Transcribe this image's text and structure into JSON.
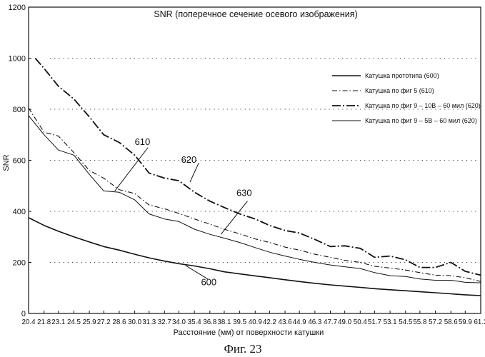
{
  "chart_data": {
    "type": "line",
    "title": "SNR (поперечное сечение осевого изображения)",
    "xlabel": "Расстояние (мм) от поверхности катушки",
    "ylabel": "SNR",
    "ylim": [
      0,
      1200
    ],
    "yticks": [
      "0",
      "200",
      "400",
      "600",
      "800",
      "1000",
      "1200"
    ],
    "x_tick_labels": [
      "20.4",
      "21.8",
      "23.1",
      "24.5",
      "25.9",
      "27.2",
      "28.6",
      "30.0",
      "31.3",
      "32.7",
      "34.0",
      "35.4",
      "36.8",
      "38.1",
      "39.5",
      "40.9",
      "42.2",
      "43.6",
      "44.9",
      "46.3",
      "47.7",
      "49.0",
      "50.4",
      "51.7",
      "53.1",
      "54.5",
      "55.8",
      "57.2",
      "58.6",
      "59.9",
      "61.3"
    ],
    "grid": "dotted horizontal",
    "legend_position": "right",
    "series": [
      {
        "name": "Катушка прототипа (600)",
        "style": "solid-thick",
        "x": [
          20.4,
          21.8,
          23.1,
          24.5,
          25.9,
          27.2,
          28.6,
          30.0,
          31.3,
          32.7,
          34.0,
          35.4,
          36.8,
          38.1,
          39.5,
          40.9,
          42.2,
          43.6,
          44.9,
          46.3,
          47.7,
          49.0,
          50.4,
          51.7,
          53.1,
          54.5,
          55.8,
          57.2,
          58.6,
          59.9,
          61.3
        ],
        "values": [
          375,
          345,
          322,
          300,
          280,
          262,
          248,
          232,
          218,
          205,
          195,
          186,
          175,
          163,
          155,
          147,
          140,
          132,
          125,
          118,
          112,
          107,
          102,
          97,
          93,
          89,
          85,
          81,
          77,
          73,
          70
        ]
      },
      {
        "name": "Катушка по фиг  5 (610)",
        "style": "dash-dot",
        "x": [
          20.4,
          21.8,
          23.1,
          24.5,
          25.9,
          27.2,
          28.6,
          30.0,
          31.3,
          32.7,
          34.0,
          35.4,
          36.8,
          38.1,
          39.5,
          40.9,
          42.2,
          43.6,
          44.9,
          46.3,
          47.7,
          49.0,
          50.4,
          51.7,
          53.1,
          54.5,
          55.8,
          57.2,
          58.6,
          59.9,
          61.3
        ],
        "values": [
          805,
          710,
          695,
          630,
          560,
          530,
          485,
          470,
          425,
          410,
          392,
          370,
          350,
          330,
          312,
          292,
          278,
          260,
          248,
          232,
          220,
          208,
          200,
          185,
          178,
          170,
          160,
          150,
          148,
          140,
          125
        ]
      },
      {
        "name": "Катушка по фиг  9 – 10В – 60 мил (620)",
        "style": "long-dash-dot",
        "x": [
          21.0,
          21.8,
          23.1,
          24.5,
          25.9,
          27.2,
          28.6,
          30.0,
          31.3,
          32.7,
          34.0,
          35.4,
          36.8,
          38.1,
          39.5,
          40.9,
          42.2,
          43.6,
          44.9,
          46.3,
          47.7,
          49.0,
          50.4,
          51.7,
          53.1,
          54.5,
          55.8,
          57.2,
          58.6,
          59.9,
          61.3
        ],
        "values": [
          1000,
          960,
          890,
          840,
          770,
          700,
          670,
          620,
          550,
          530,
          520,
          475,
          440,
          415,
          390,
          370,
          345,
          325,
          315,
          290,
          262,
          265,
          255,
          220,
          225,
          210,
          180,
          180,
          200,
          165,
          150
        ]
      },
      {
        "name": "Катушка по фиг  9 – 5В – 60 мил (620)",
        "style": "solid-thin",
        "x": [
          20.4,
          21.8,
          23.1,
          24.5,
          25.9,
          27.2,
          28.6,
          30.0,
          31.3,
          32.7,
          34.0,
          35.4,
          36.8,
          38.1,
          39.5,
          40.9,
          42.2,
          43.6,
          44.9,
          46.3,
          47.7,
          49.0,
          50.4,
          51.7,
          53.1,
          54.5,
          55.8,
          57.2,
          58.6,
          59.9,
          61.3
        ],
        "values": [
          775,
          700,
          640,
          620,
          545,
          480,
          475,
          445,
          390,
          370,
          360,
          330,
          310,
          295,
          278,
          258,
          240,
          225,
          212,
          200,
          190,
          183,
          176,
          160,
          148,
          145,
          135,
          130,
          130,
          122,
          120
        ]
      }
    ],
    "annotations": [
      {
        "label": "610",
        "x": 30.0,
        "y": 660
      },
      {
        "label": "620",
        "x": 34.2,
        "y": 590
      },
      {
        "label": "630",
        "x": 39.2,
        "y": 460
      },
      {
        "label": "600",
        "x": 36.0,
        "y": 110
      }
    ]
  },
  "caption": "Фиг. 23"
}
